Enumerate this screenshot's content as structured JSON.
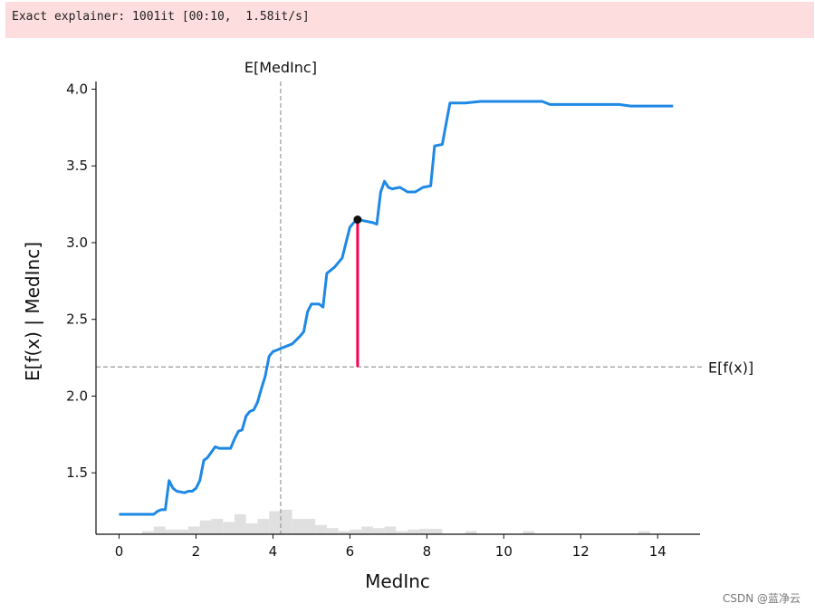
{
  "output": {
    "stderr_text": "Exact explainer: 1001it [00:10,  1.58it/s]"
  },
  "watermark": "CSDN @蓝净云",
  "chart_data": {
    "type": "line",
    "xlabel": "MedInc",
    "ylabel": "E[f(x) | MedInc]",
    "xlim": [
      -0.6,
      15.1
    ],
    "ylim": [
      1.1,
      4.05
    ],
    "xticks": [
      0,
      2,
      4,
      6,
      8,
      10,
      12,
      14
    ],
    "yticks": [
      1.5,
      2.0,
      2.5,
      3.0,
      3.5,
      4.0
    ],
    "xtick_labels": [
      "0",
      "2",
      "4",
      "6",
      "8",
      "10",
      "12",
      "14"
    ],
    "ytick_labels": [
      "1.5",
      "2.0",
      "2.5",
      "3.0",
      "3.5",
      "4.0"
    ],
    "vline": {
      "x": 4.2,
      "label": "E[MedInc]"
    },
    "hline": {
      "y": 2.19,
      "label": "E[f(x)]"
    },
    "highlight_point": {
      "x": 6.2,
      "y": 3.15
    },
    "series": [
      {
        "x": [
          0,
          0.3,
          0.6,
          0.9,
          1.0,
          1.1,
          1.2,
          1.3,
          1.4,
          1.5,
          1.7,
          1.8,
          1.9,
          2.0,
          2.1,
          2.2,
          2.3,
          2.5,
          2.6,
          2.8,
          2.9,
          3.0,
          3.1,
          3.2,
          3.3,
          3.4,
          3.5,
          3.6,
          3.7,
          3.8,
          3.9,
          4.0,
          4.1,
          4.2,
          4.3,
          4.5,
          4.7,
          4.8,
          4.9,
          5.0,
          5.2,
          5.3,
          5.4,
          5.6,
          5.8,
          5.9,
          6.0,
          6.1,
          6.2,
          6.4,
          6.6,
          6.7,
          6.8,
          6.9,
          7.0,
          7.1,
          7.3,
          7.5,
          7.7,
          7.9,
          8.1,
          8.2,
          8.4,
          8.6,
          8.7,
          9.0,
          9.4,
          10.0,
          11.0,
          11.2,
          12.0,
          13.0,
          13.3,
          14.0,
          14.4
        ],
        "y": [
          1.23,
          1.23,
          1.23,
          1.23,
          1.25,
          1.26,
          1.26,
          1.45,
          1.4,
          1.38,
          1.37,
          1.38,
          1.38,
          1.4,
          1.45,
          1.58,
          1.6,
          1.67,
          1.66,
          1.66,
          1.66,
          1.72,
          1.77,
          1.78,
          1.87,
          1.9,
          1.91,
          1.96,
          2.05,
          2.13,
          2.26,
          2.29,
          2.3,
          2.31,
          2.32,
          2.34,
          2.39,
          2.42,
          2.55,
          2.6,
          2.6,
          2.58,
          2.8,
          2.84,
          2.9,
          3.0,
          3.1,
          3.13,
          3.15,
          3.14,
          3.13,
          3.12,
          3.33,
          3.4,
          3.36,
          3.35,
          3.36,
          3.33,
          3.33,
          3.36,
          3.37,
          3.63,
          3.64,
          3.91,
          3.91,
          3.91,
          3.92,
          3.92,
          3.92,
          3.9,
          3.9,
          3.9,
          3.89,
          3.89,
          3.89
        ]
      }
    ],
    "histogram": {
      "bin_width": 0.3,
      "starts": [
        0.6,
        0.9,
        1.2,
        1.5,
        1.8,
        2.1,
        2.4,
        2.7,
        3.0,
        3.3,
        3.6,
        3.9,
        4.2,
        4.5,
        4.8,
        5.1,
        5.4,
        5.7,
        6.0,
        6.3,
        6.6,
        6.9,
        7.2,
        7.5,
        7.8,
        8.1,
        9.0,
        10.5,
        13.5
      ],
      "heights": [
        0.02,
        0.05,
        0.03,
        0.03,
        0.05,
        0.09,
        0.1,
        0.08,
        0.13,
        0.07,
        0.1,
        0.15,
        0.16,
        0.1,
        0.1,
        0.06,
        0.04,
        0.02,
        0.03,
        0.05,
        0.04,
        0.05,
        0.02,
        0.03,
        0.035,
        0.035,
        0.02,
        0.02,
        0.02
      ]
    },
    "colors": {
      "line": "#1e88e5",
      "highlight_segment": "#ff0051",
      "point": "#111111",
      "histogram": "#e0e0e0",
      "reference_lines": "#999999"
    }
  }
}
